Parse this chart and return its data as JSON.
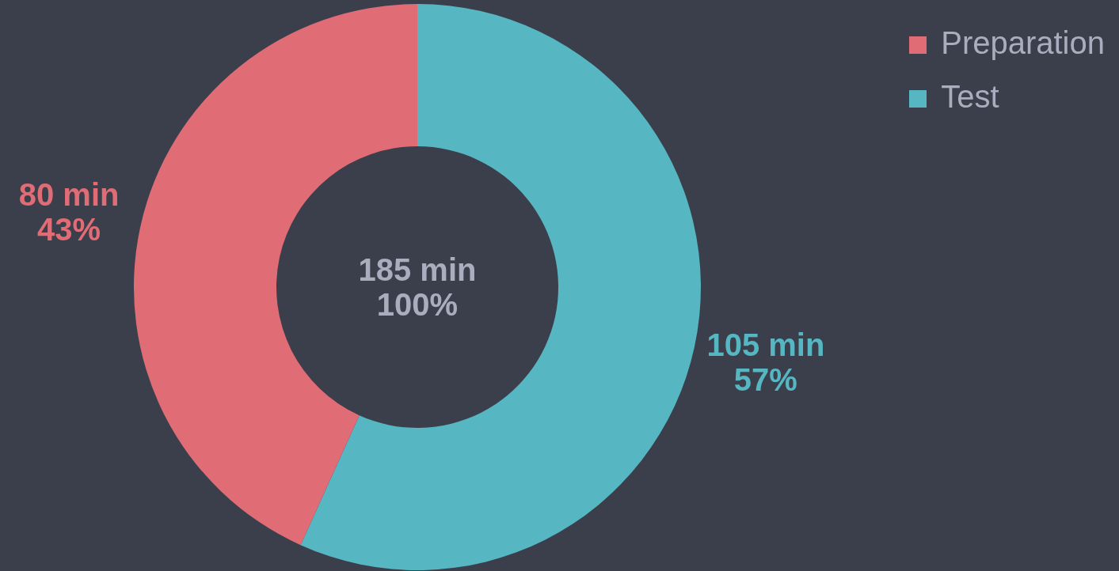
{
  "chart_data": {
    "type": "donut",
    "categories": [
      "Test",
      "Preparation"
    ],
    "values": [
      105,
      80
    ],
    "colors": [
      "#56b6c2",
      "#e06c75"
    ],
    "value_labels": [
      "105 min\n57%",
      "80 min\n43%"
    ],
    "annotations": [
      "185 min\n100%"
    ],
    "legend": "top right"
  }
}
